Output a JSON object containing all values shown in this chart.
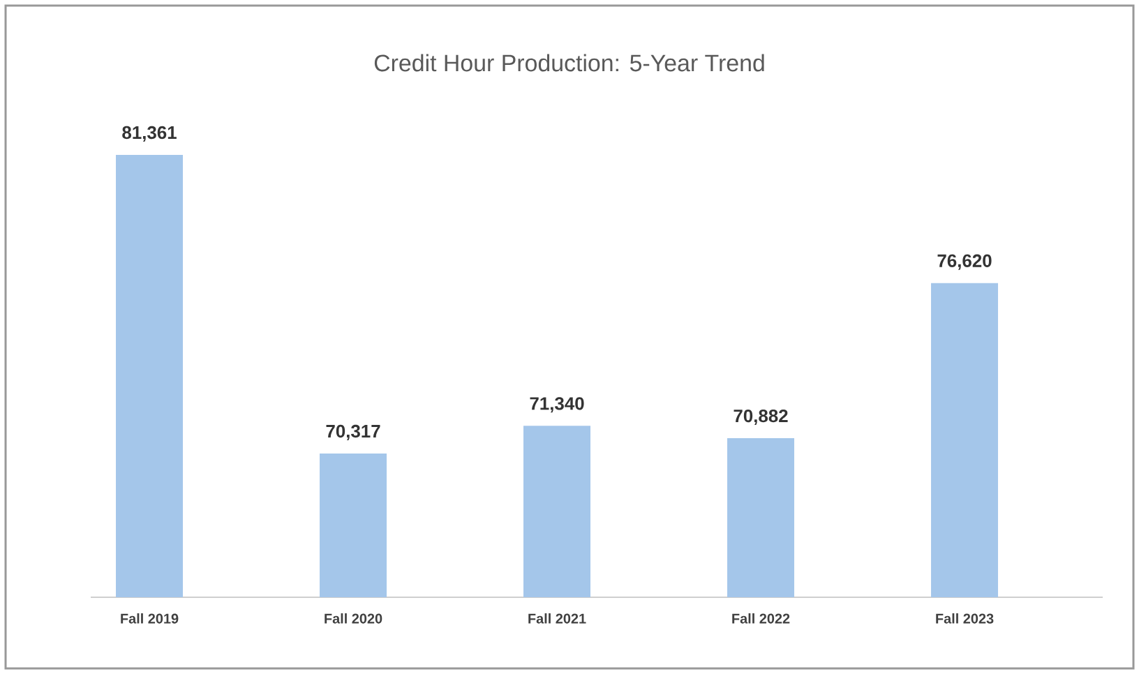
{
  "chart_data": {
    "type": "bar",
    "title": "Credit Hour Production:  5-Year Trend",
    "categories": [
      "Fall 2019",
      "Fall 2020",
      "Fall 2021",
      "Fall 2022",
      "Fall 2023"
    ],
    "values": [
      81361,
      70317,
      71340,
      70882,
      76620
    ],
    "value_labels": [
      "81,361",
      "70,317",
      "71,340",
      "70,882",
      "76,620"
    ],
    "color": "#a4c6ea",
    "ylim": [
      65000,
      81361
    ],
    "tick_labels": "x"
  }
}
